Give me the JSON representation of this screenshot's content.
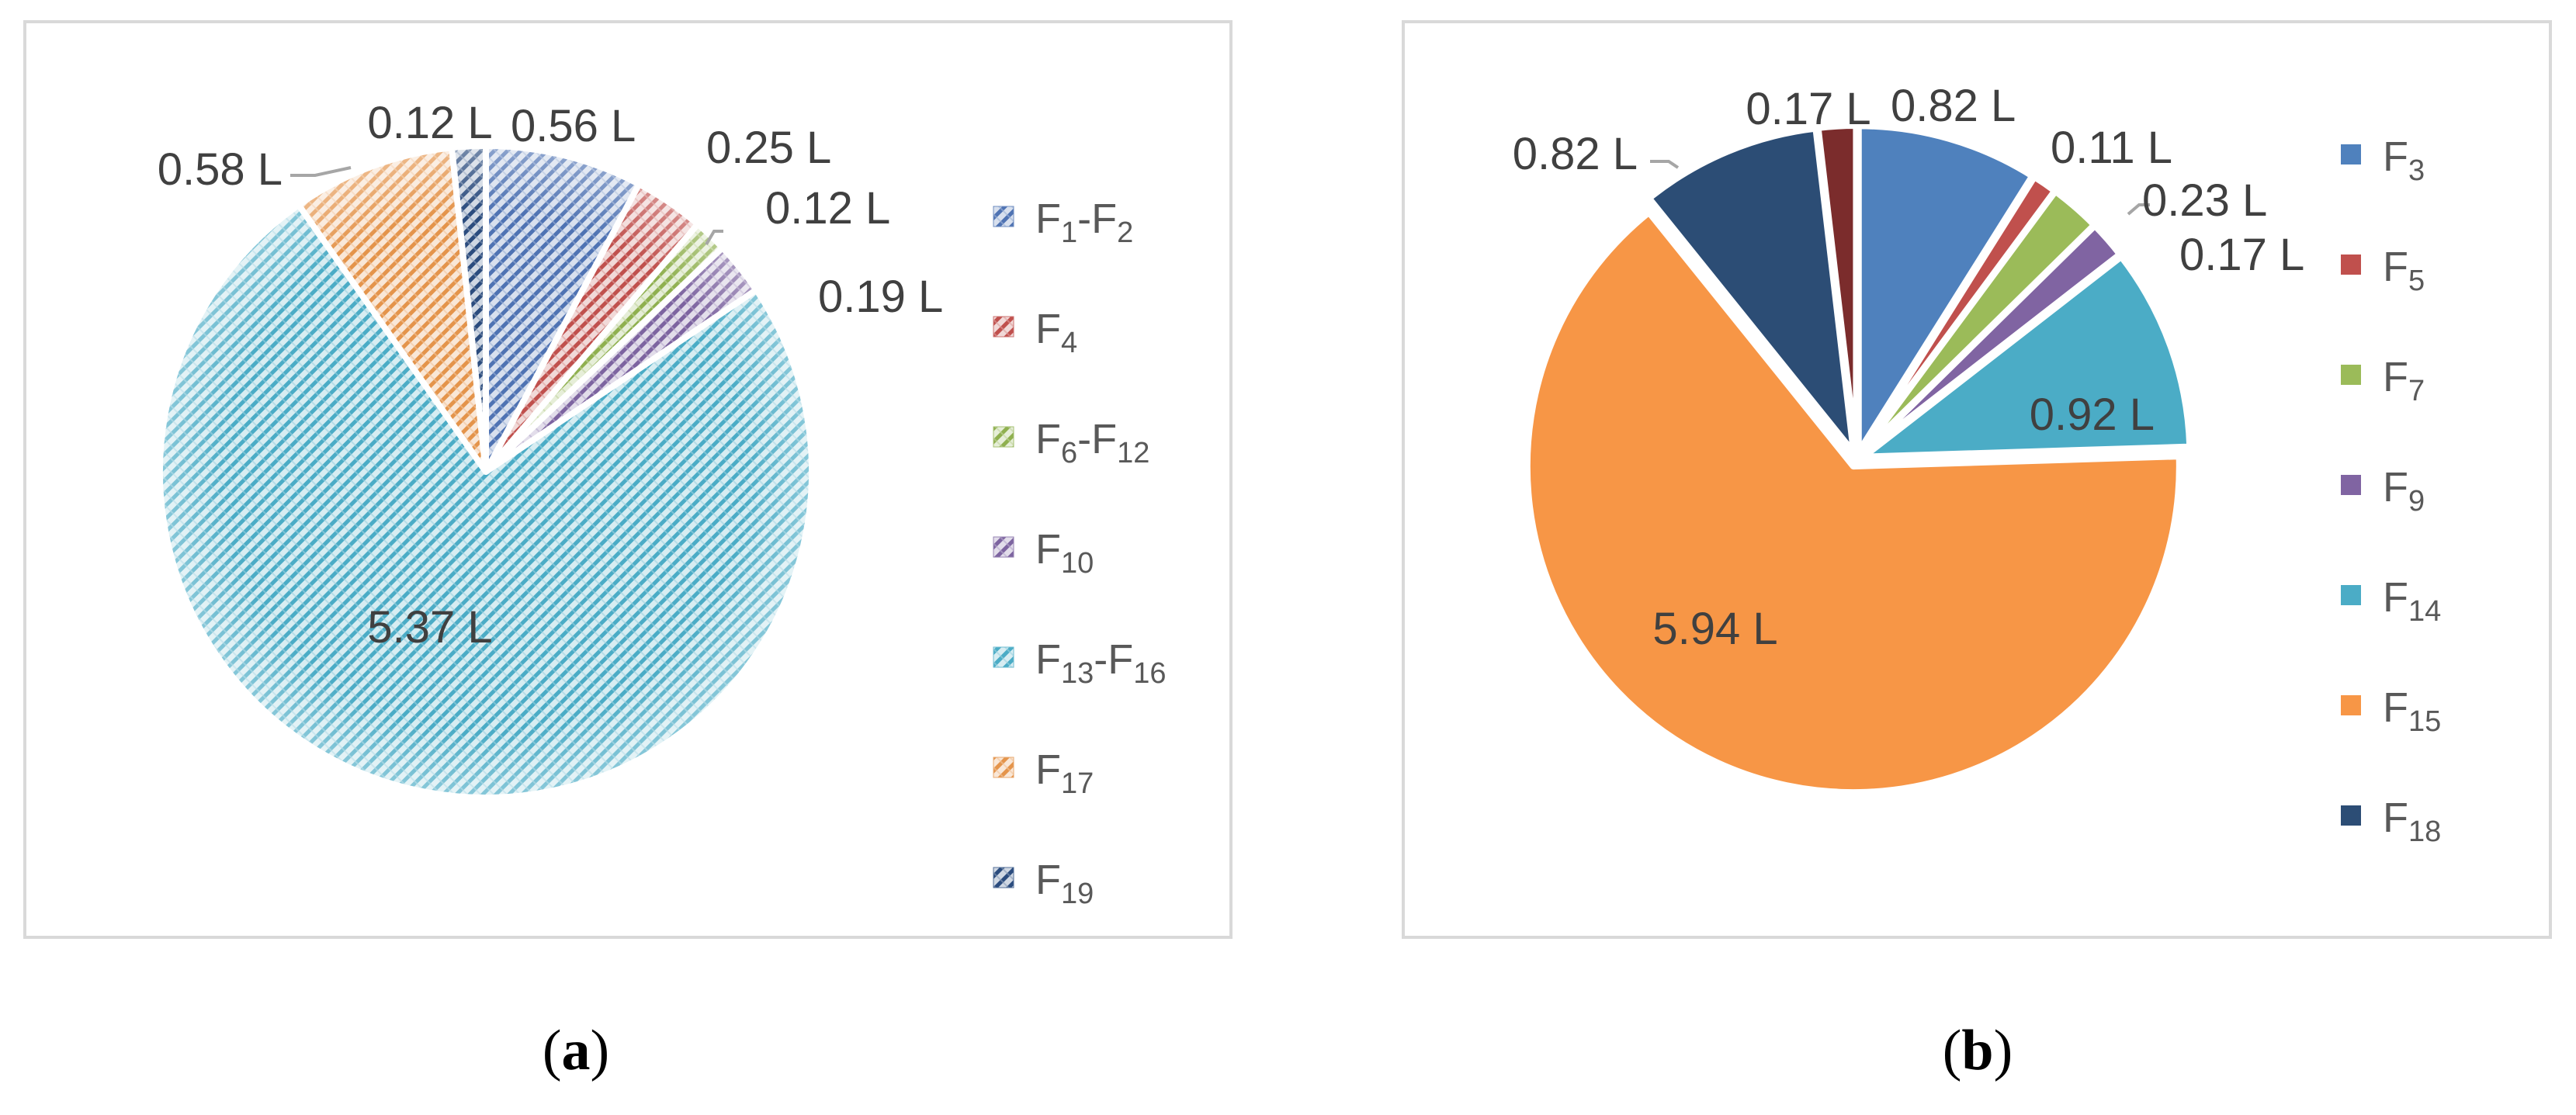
{
  "chart_data": [
    {
      "type": "pie",
      "panel": "(a)",
      "unit": "L",
      "start_angle_deg": 0,
      "legend_position": "right",
      "fill_style": "hatched",
      "slices": [
        {
          "label_main": "F",
          "label_sub": "1",
          "label_tail": "-F",
          "label_sub2": "2",
          "value": 0.56,
          "data_label": "0.56 L",
          "color": "#4f73b3"
        },
        {
          "label_main": "F",
          "label_sub": "4",
          "label_tail": "",
          "label_sub2": "",
          "value": 0.25,
          "data_label": "0.25 L",
          "color": "#c0504d"
        },
        {
          "label_main": "F",
          "label_sub": "6",
          "label_tail": "-F",
          "label_sub2": "12",
          "value": 0.12,
          "data_label": "0.12 L",
          "color": "#8fb04f"
        },
        {
          "label_main": "F",
          "label_sub": "10",
          "label_tail": "",
          "label_sub2": "",
          "value": 0.19,
          "data_label": "0.19 L",
          "color": "#7d64a0"
        },
        {
          "label_main": "F",
          "label_sub": "13",
          "label_tail": "-F",
          "label_sub2": "16",
          "value": 5.37,
          "data_label": "5.37 L",
          "color": "#4bacc6"
        },
        {
          "label_main": "F",
          "label_sub": "17",
          "label_tail": "",
          "label_sub2": "",
          "value": 0.58,
          "data_label": "0.58 L",
          "color": "#e4944b"
        },
        {
          "label_main": "F",
          "label_sub": "19",
          "label_tail": "",
          "label_sub2": "",
          "value": 0.12,
          "data_label": "0.12 L",
          "color": "#2b4c7e"
        }
      ]
    },
    {
      "type": "pie",
      "panel": "(b)",
      "unit": "L",
      "start_angle_deg": 0,
      "legend_position": "right",
      "fill_style": "solid",
      "slices": [
        {
          "label_main": "F",
          "label_sub": "3",
          "label_tail": "",
          "label_sub2": "",
          "value": 0.82,
          "data_label": "0.82 L",
          "color": "#4f81bd"
        },
        {
          "label_main": "F",
          "label_sub": "5",
          "label_tail": "",
          "label_sub2": "",
          "value": 0.11,
          "data_label": "0.11 L",
          "color": "#c0504d"
        },
        {
          "label_main": "F",
          "label_sub": "7",
          "label_tail": "",
          "label_sub2": "",
          "value": 0.23,
          "data_label": "0.23 L",
          "color": "#9bbb59"
        },
        {
          "label_main": "F",
          "label_sub": "9",
          "label_tail": "",
          "label_sub2": "",
          "value": 0.17,
          "data_label": "0.17 L",
          "color": "#8064a2"
        },
        {
          "label_main": "F",
          "label_sub": "14",
          "label_tail": "",
          "label_sub2": "",
          "value": 0.92,
          "data_label": "0.92 L",
          "color": "#4bacc6"
        },
        {
          "label_main": "F",
          "label_sub": "15",
          "label_tail": "",
          "label_sub2": "",
          "value": 5.94,
          "data_label": "5.94 L",
          "color": "#f79646"
        },
        {
          "label_main": "F",
          "label_sub": "18",
          "label_tail": "",
          "label_sub2": "",
          "value": 0.82,
          "data_label": "0.82 L",
          "color": "#2c4d75"
        },
        {
          "label_main": "",
          "label_sub": "",
          "label_tail": "",
          "label_sub2": "",
          "value": 0.17,
          "data_label": "0.17 L",
          "color": "#7b2c2c"
        }
      ]
    }
  ],
  "captions": {
    "a": {
      "open": "(",
      "letter": "a",
      "close": ")"
    },
    "b": {
      "open": "(",
      "letter": "b",
      "close": ")"
    }
  },
  "leader_line_color": "#a6a6a6"
}
